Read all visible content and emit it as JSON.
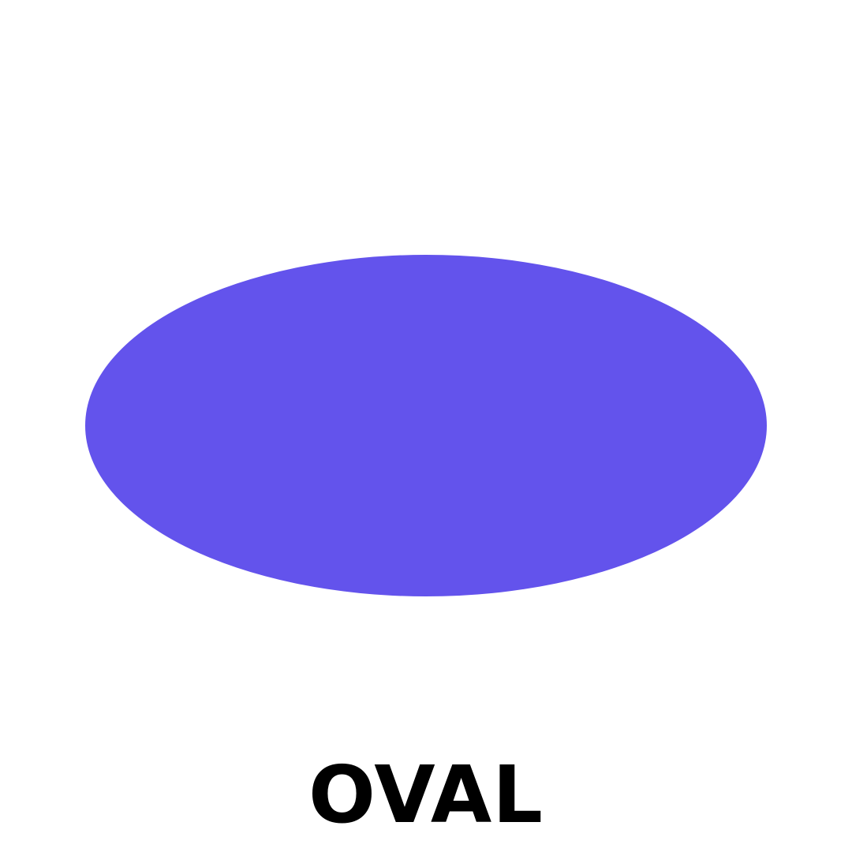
{
  "shape": {
    "name": "oval",
    "fill_color": "#6353EC"
  },
  "caption": {
    "text": "OVAL",
    "color": "#000000"
  },
  "background_color": "#FFFFFF"
}
